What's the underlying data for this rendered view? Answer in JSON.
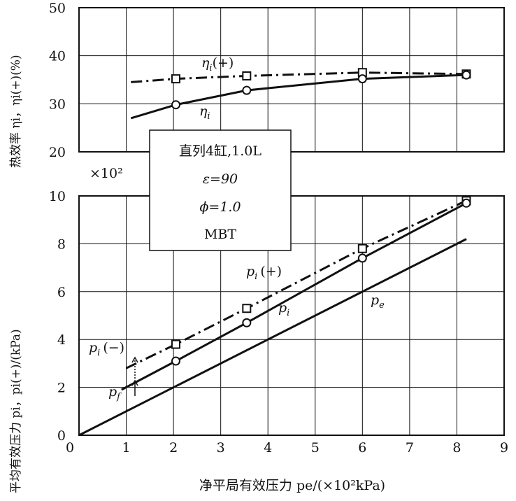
{
  "chart_data": [
    {
      "type": "line",
      "id": "efficiency",
      "ylabel": "热效率 ηi，ηi(+)(%)",
      "ylim": [
        20,
        50
      ],
      "yticks": [
        20,
        30,
        40,
        50
      ],
      "xlim": [
        0,
        9
      ],
      "series": [
        {
          "name": "ηi(+)",
          "style": "dashdot",
          "marker": "square",
          "x": [
            1.1,
            2.05,
            3.55,
            6.0,
            8.2
          ],
          "y": [
            34.5,
            35.2,
            35.8,
            36.5,
            36.2
          ],
          "marker_x": [
            2.05,
            3.55,
            6.0,
            8.2
          ],
          "marker_y": [
            35.2,
            35.8,
            36.5,
            36.2
          ]
        },
        {
          "name": "ηi",
          "style": "solid",
          "marker": "circle",
          "x": [
            1.1,
            2.05,
            3.55,
            6.0,
            8.2
          ],
          "y": [
            27.0,
            29.8,
            32.8,
            35.2,
            36.0
          ],
          "marker_x": [
            2.05,
            3.55,
            6.0,
            8.2
          ],
          "marker_y": [
            29.8,
            32.8,
            35.2,
            36.0
          ]
        }
      ]
    },
    {
      "type": "line",
      "id": "pressure",
      "ylabel": "平均有效压力 pi，pi(+)/(kPa)",
      "xlabel": "净平局有效压力 pe/(×10²kPa)",
      "yscale_label": "×10²",
      "xlim": [
        0,
        9
      ],
      "ylim": [
        0,
        10
      ],
      "xticks": [
        1,
        2,
        3,
        4,
        5,
        6,
        7,
        8,
        9
      ],
      "yticks": [
        0,
        2,
        4,
        6,
        8,
        10
      ],
      "series": [
        {
          "name": "pi(+)",
          "style": "dashdot",
          "marker": "square",
          "x": [
            1.0,
            2.05,
            3.55,
            6.0,
            8.2
          ],
          "y": [
            2.8,
            3.8,
            5.3,
            7.8,
            9.8
          ],
          "marker_x": [
            2.05,
            3.55,
            6.0,
            8.2
          ],
          "marker_y": [
            3.8,
            5.3,
            7.8,
            9.8
          ]
        },
        {
          "name": "pi",
          "style": "solid",
          "marker": "circle",
          "x": [
            0.9,
            2.05,
            3.55,
            6.0,
            8.2
          ],
          "y": [
            1.9,
            3.1,
            4.7,
            7.4,
            9.7
          ],
          "marker_x": [
            2.05,
            3.55,
            6.0,
            8.2
          ],
          "marker_y": [
            3.1,
            4.7,
            7.4,
            9.7
          ]
        },
        {
          "name": "pe",
          "style": "solid",
          "marker": "none",
          "x": [
            0.0,
            8.2
          ],
          "y": [
            0.0,
            8.2
          ]
        }
      ]
    }
  ],
  "annotations": {
    "eta_plus": {
      "main": "η",
      "sub": "i",
      "suffix": "(+)"
    },
    "eta": {
      "main": "η",
      "sub": "i",
      "suffix": ""
    },
    "pi_plus": {
      "main": "p",
      "sub": "i",
      "suffix": "(+)"
    },
    "pi": {
      "main": "p",
      "sub": "i",
      "suffix": ""
    },
    "pe": {
      "main": "p",
      "sub": "e",
      "suffix": ""
    },
    "pi_minus": {
      "main": "p",
      "sub": "i",
      "suffix": "(−)"
    },
    "pf": {
      "main": "p",
      "sub": "f",
      "suffix": ""
    }
  },
  "legend_box": {
    "line1": "直列4缸,1.0L",
    "line2": "ε=90",
    "line3": "ϕ=1.0",
    "line4": "MBT"
  }
}
